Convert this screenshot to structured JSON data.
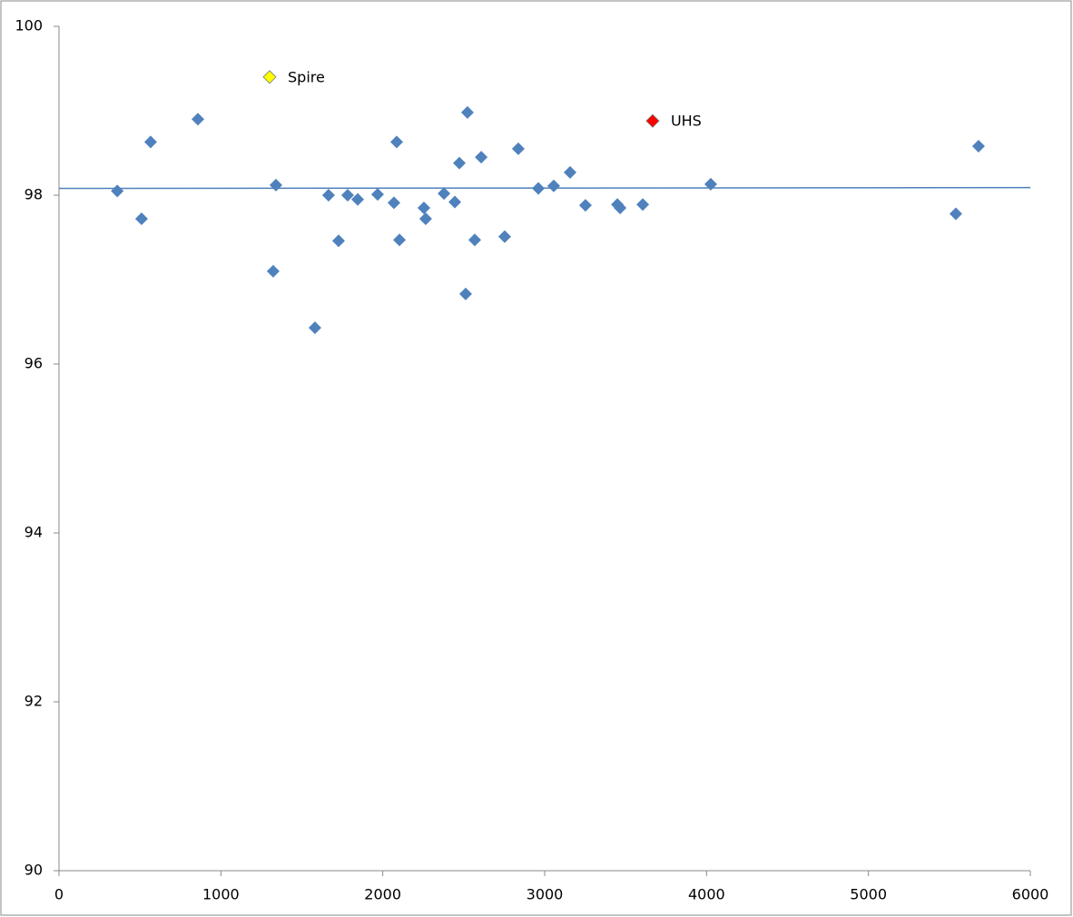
{
  "chart_data": {
    "type": "scatter",
    "xlim": [
      0,
      6000
    ],
    "xticks": [
      0,
      1000,
      2000,
      3000,
      4000,
      5000,
      6000
    ],
    "ylim": [
      90,
      100
    ],
    "yticks": [
      90,
      92,
      94,
      96,
      98,
      100
    ],
    "grid": false,
    "series": [
      {
        "color": "#4f81bd",
        "x": [
          360,
          510,
          566,
          858,
          1323,
          1340,
          1581,
          1665,
          1727,
          1783,
          1845,
          1968,
          2069,
          2086,
          2103,
          2254,
          2265,
          2378,
          2445,
          2473,
          2512,
          2523,
          2568,
          2608,
          2753,
          2837,
          2961,
          3056,
          3157,
          3252,
          3449,
          3466,
          3606,
          4026,
          5540,
          5680
        ],
        "values": [
          98.05,
          97.72,
          98.63,
          98.9,
          97.1,
          98.12,
          96.43,
          98.0,
          97.46,
          98.0,
          97.95,
          98.01,
          97.91,
          98.63,
          97.47,
          97.85,
          97.72,
          98.02,
          97.92,
          98.38,
          96.83,
          98.98,
          97.47,
          98.45,
          97.51,
          98.55,
          98.08,
          98.11,
          98.27,
          97.88,
          97.89,
          97.85,
          97.89,
          98.13,
          97.78,
          98.58
        ]
      },
      {
        "name": "Spire",
        "color": "#ffff00",
        "x": [
          1301
        ],
        "values": [
          99.4
        ]
      },
      {
        "name": "UHS",
        "color": "#ff0000",
        "x": [
          3667
        ],
        "values": [
          98.88
        ]
      }
    ],
    "trendline": {
      "color": "#4f81bd",
      "x": [
        0,
        6000
      ],
      "values": [
        98.08,
        98.09
      ]
    }
  }
}
